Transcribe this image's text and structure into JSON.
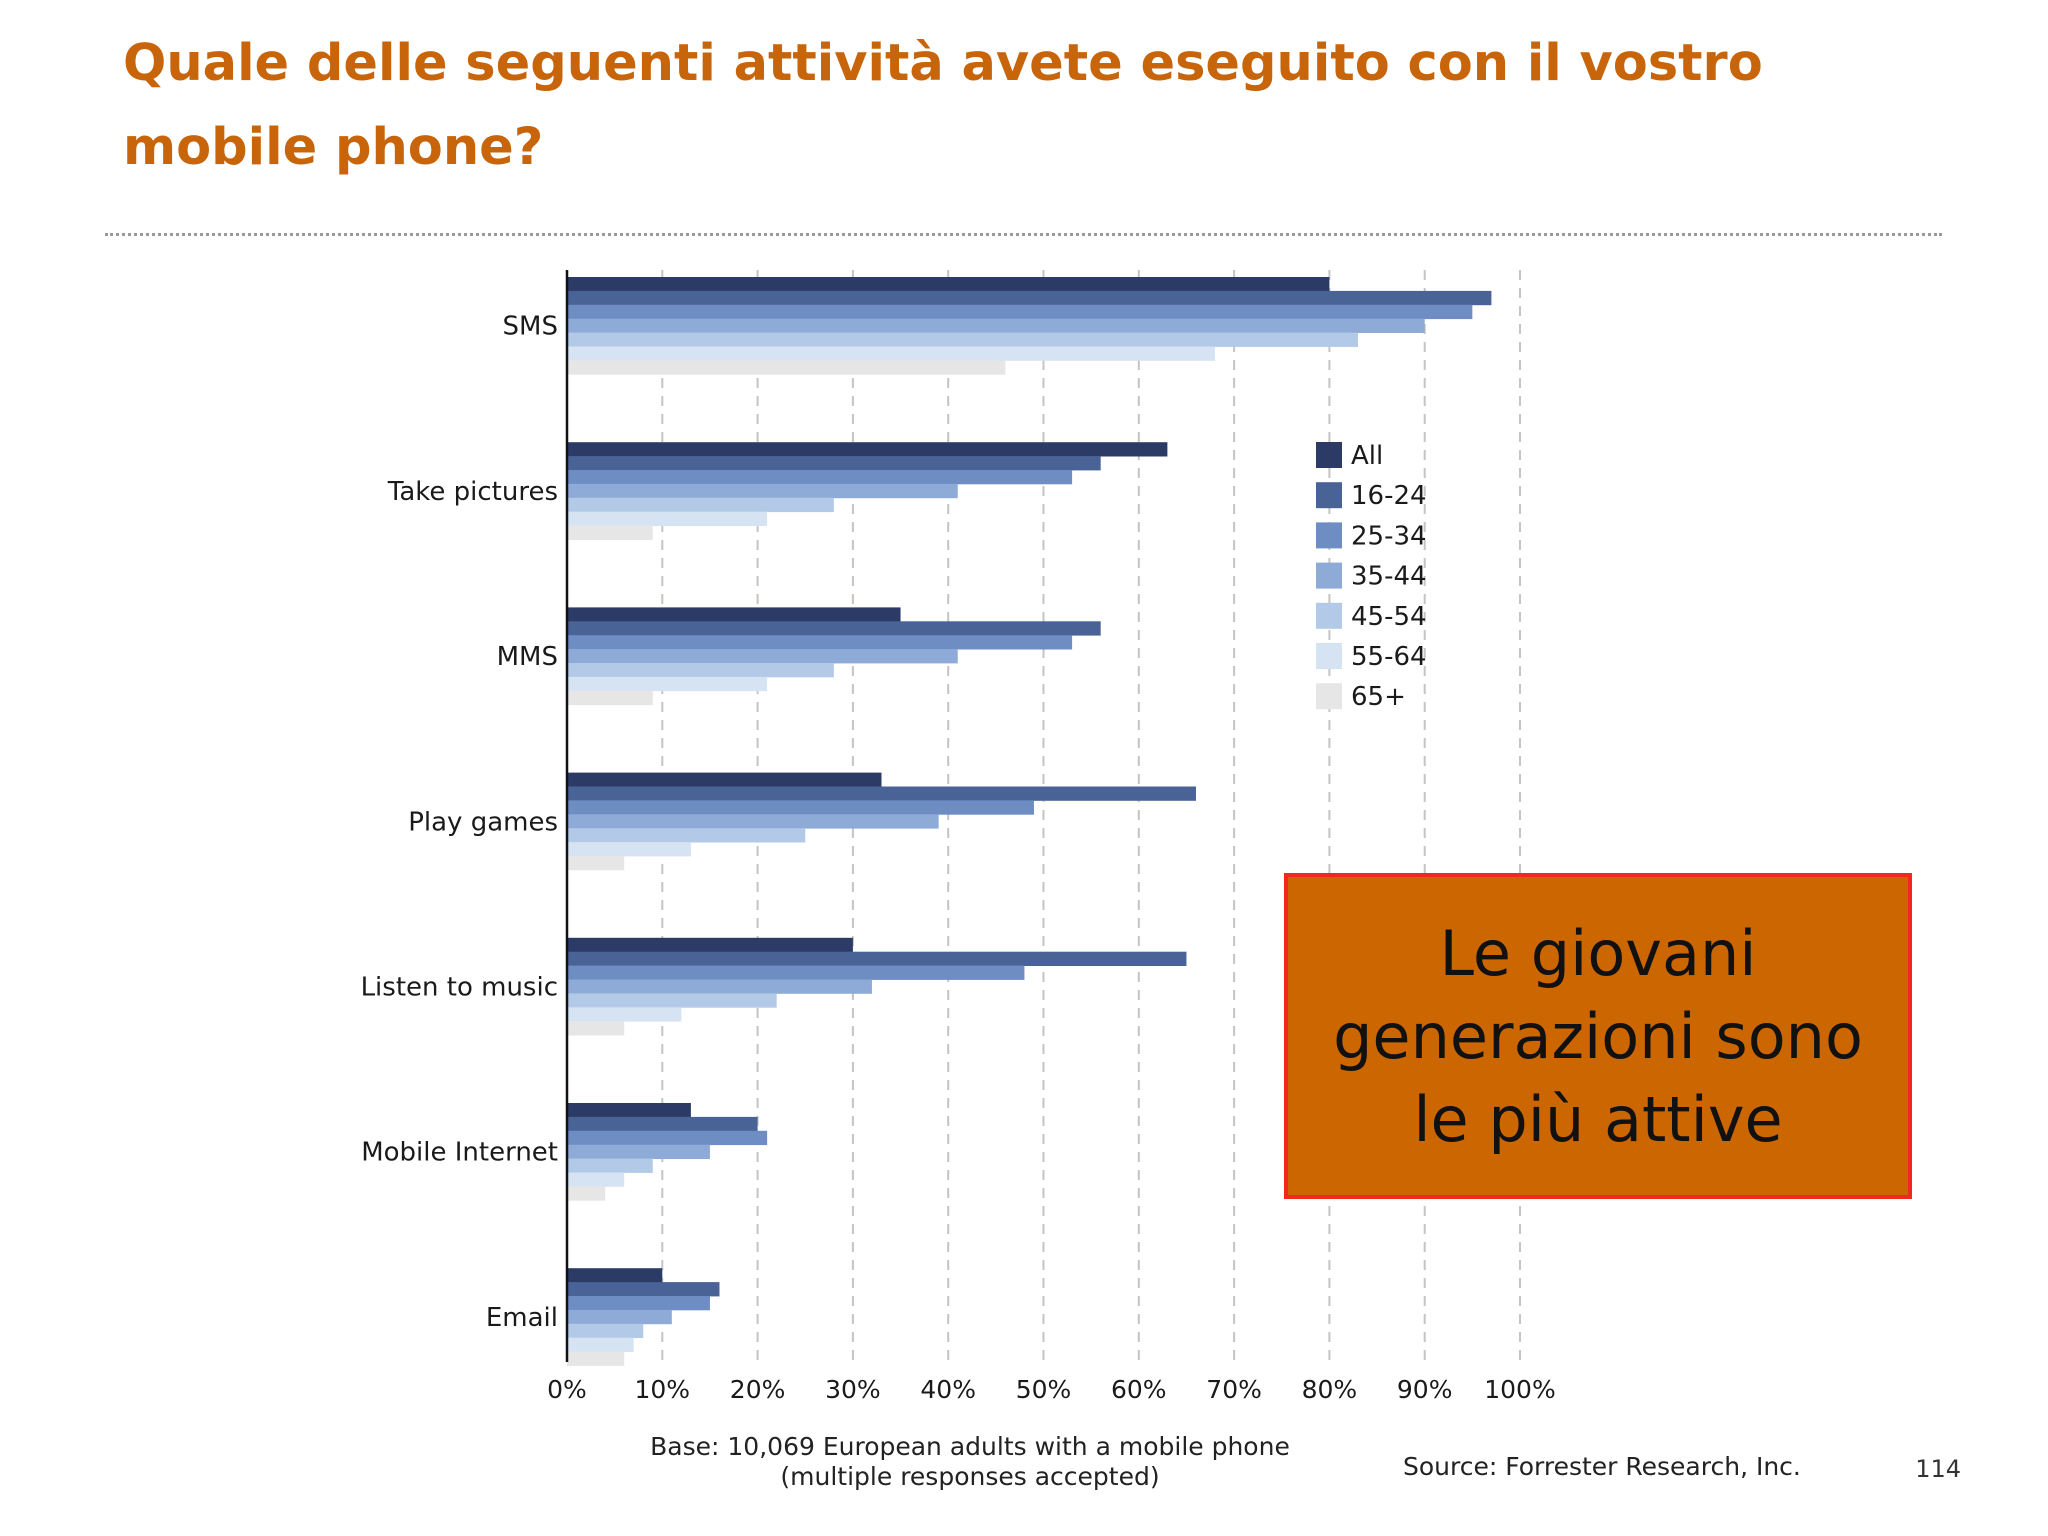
{
  "slide": {
    "title": "Quale delle seguenti attività avete eseguito con il vostro mobile phone?",
    "page_number": "114"
  },
  "callout": {
    "text": "Le giovani generazioni sono le più attive",
    "background": "#cc6600",
    "border": "#f0281e"
  },
  "chart_data": {
    "type": "bar",
    "orientation": "horizontal",
    "categories": [
      "SMS",
      "Take pictures",
      "MMS",
      "Play games",
      "Listen to music",
      "Mobile Internet",
      "Email"
    ],
    "series": [
      {
        "name": "All",
        "color": "#2c3a66",
        "values": [
          80,
          63,
          35,
          33,
          30,
          13,
          10
        ]
      },
      {
        "name": "16-24",
        "color": "#4a6396",
        "values": [
          97,
          56,
          56,
          66,
          65,
          20,
          16
        ]
      },
      {
        "name": "25-34",
        "color": "#6e8dc2",
        "values": [
          95,
          53,
          53,
          49,
          48,
          21,
          15
        ]
      },
      {
        "name": "35-44",
        "color": "#8eabd8",
        "values": [
          90,
          41,
          41,
          39,
          32,
          15,
          11
        ]
      },
      {
        "name": "45-54",
        "color": "#b2c9e8",
        "values": [
          83,
          28,
          28,
          25,
          22,
          9,
          8
        ]
      },
      {
        "name": "55-64",
        "color": "#d6e3f3",
        "values": [
          68,
          21,
          21,
          13,
          12,
          6,
          7
        ]
      },
      {
        "name": "65+",
        "color": "#e6e6e6",
        "values": [
          46,
          9,
          9,
          6,
          6,
          4,
          6
        ]
      }
    ],
    "x_ticks": [
      "0%",
      "10%",
      "20%",
      "30%",
      "40%",
      "50%",
      "60%",
      "70%",
      "80%",
      "90%",
      "100%"
    ],
    "xlim": [
      0,
      100
    ],
    "grid": true,
    "legend_position": "right",
    "base_note": "Base: 10,069 European adults with a mobile phone",
    "base_note_2": "(multiple responses accepted)",
    "source": "Source: Forrester Research, Inc."
  }
}
